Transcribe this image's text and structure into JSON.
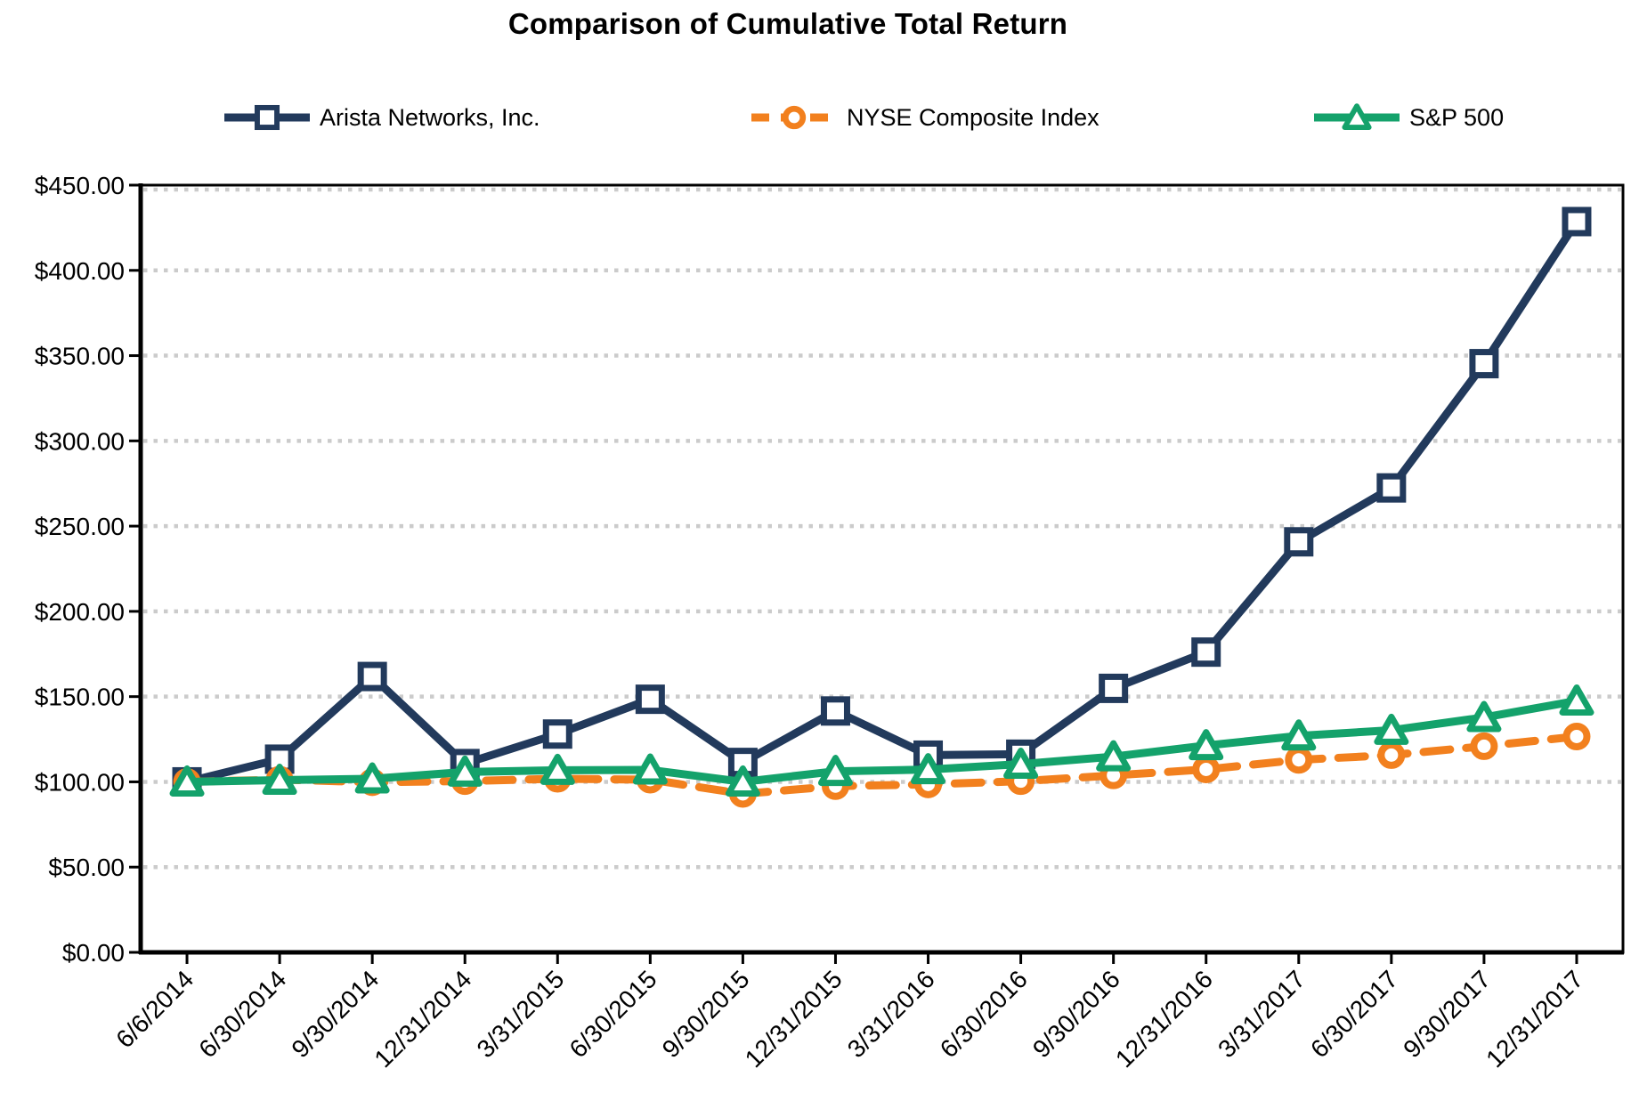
{
  "chart_data": {
    "type": "line",
    "title": "Comparison of Cumulative Total Return",
    "categories": [
      "6/6/2014",
      "6/30/2014",
      "9/30/2014",
      "12/31/2014",
      "3/31/2015",
      "6/30/2015",
      "9/30/2015",
      "12/31/2015",
      "3/31/2016",
      "6/30/2016",
      "9/30/2016",
      "12/31/2016",
      "3/31/2017",
      "6/30/2017",
      "9/30/2017",
      "12/31/2017"
    ],
    "series": [
      {
        "name": "Arista Networks, Inc.",
        "color": "#223A5C",
        "marker": "square",
        "line_style": "solid",
        "values": [
          100.0,
          113.31,
          161.79,
          110.73,
          128.04,
          148.45,
          111.39,
          141.57,
          115.67,
          116.23,
          154.84,
          176.1,
          240.79,
          272.41,
          345.29,
          428.61
        ]
      },
      {
        "name": "NYSE Composite Index",
        "color": "#F2801E",
        "marker": "circle",
        "line_style": "dashed",
        "values": [
          100.0,
          101.3,
          99.8,
          100.45,
          101.8,
          101.3,
          92.95,
          97.5,
          98.5,
          100.4,
          103.8,
          107.3,
          112.9,
          115.7,
          120.9,
          126.6
        ]
      },
      {
        "name": "S&P 500",
        "color": "#14A26B",
        "marker": "triangle",
        "line_style": "solid",
        "values": [
          100.0,
          101.0,
          101.8,
          105.8,
          106.8,
          107.0,
          100.0,
          106.2,
          107.2,
          110.4,
          114.8,
          121.3,
          127.0,
          130.3,
          137.8,
          147.5
        ]
      }
    ],
    "xlabel": "",
    "ylabel": "",
    "ylim": [
      0,
      450
    ],
    "y_step": 50,
    "y_tick_labels": [
      "$0.00",
      "$50.00",
      "$100.00",
      "$150.00",
      "$200.00",
      "$250.00",
      "$300.00",
      "$350.00",
      "$400.00",
      "$450.00"
    ],
    "grid": "horizontal-dotted",
    "grid_color": "#CBCBCB",
    "axis_color": "#000000",
    "legend_position": "top",
    "x_tick_rotation": -45
  }
}
